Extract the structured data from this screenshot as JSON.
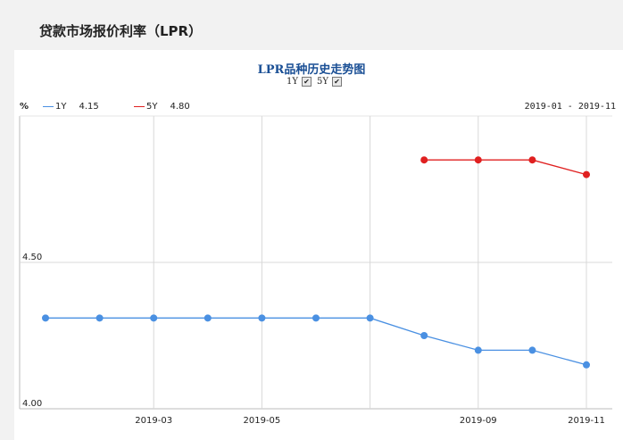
{
  "page": {
    "header_title": "贷款市场报价利率（LPR）"
  },
  "chart_controls": {
    "toggles": [
      {
        "label": "1Y",
        "checked": true
      },
      {
        "label": "5Y",
        "checked": true
      }
    ],
    "unit_label": "%",
    "legend": [
      {
        "name": "1Y",
        "value": "4.15",
        "color": "#4a90e2"
      },
      {
        "name": "5Y",
        "value": "4.80",
        "color": "#e02020"
      }
    ],
    "range_label": "2019-01 - 2019-11"
  },
  "chart_data": {
    "type": "line",
    "title": "LPR品种历史走势图",
    "x": [
      "2019-01",
      "2019-02",
      "2019-03",
      "2019-04",
      "2019-05",
      "2019-06",
      "2019-07",
      "2019-08",
      "2019-09",
      "2019-10",
      "2019-11"
    ],
    "x_tick_labels": [
      "2019-03",
      "2019-05",
      "2019-09",
      "2019-11"
    ],
    "y_tick_labels": [
      "4.50",
      "4.00"
    ],
    "ylim": [
      4.0,
      5.0
    ],
    "grid": true,
    "series": [
      {
        "name": "1Y",
        "color": "#4a90e2",
        "values": [
          4.31,
          4.31,
          4.31,
          4.31,
          4.31,
          4.31,
          4.31,
          4.25,
          4.2,
          4.2,
          4.15
        ]
      },
      {
        "name": "5Y",
        "color": "#e02020",
        "values": [
          null,
          null,
          null,
          null,
          null,
          null,
          null,
          4.85,
          4.85,
          4.85,
          4.8
        ]
      }
    ]
  }
}
